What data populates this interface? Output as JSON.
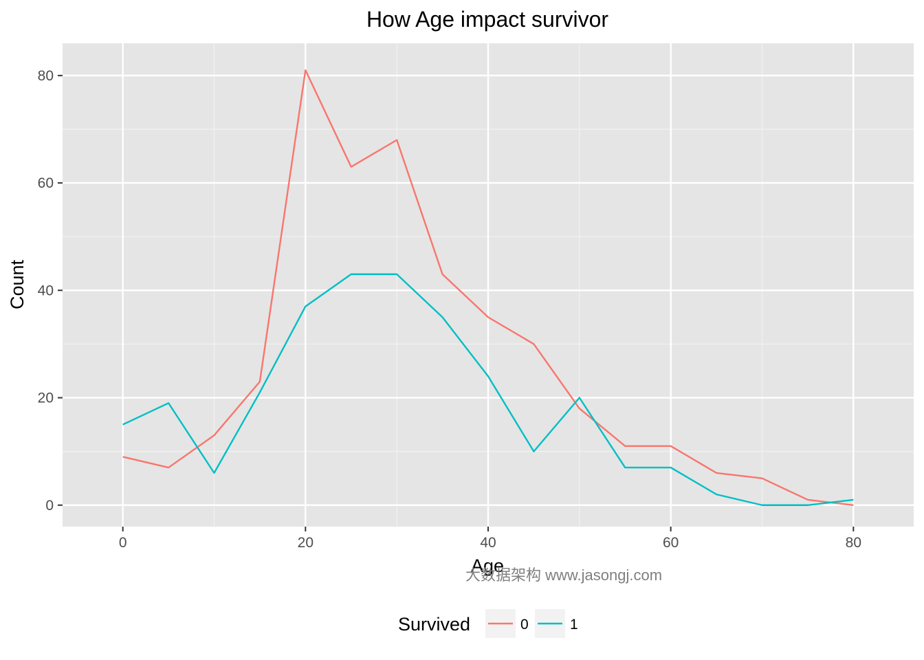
{
  "chart_data": {
    "type": "line",
    "title": "How Age impact survivor",
    "xlabel": "Age",
    "ylabel": "Count",
    "x": [
      0,
      5,
      10,
      15,
      20,
      25,
      30,
      35,
      40,
      45,
      50,
      55,
      60,
      65,
      70,
      75,
      80
    ],
    "series": [
      {
        "name": "0",
        "color": "#F8766D",
        "values": [
          9,
          7,
          13,
          23,
          81,
          63,
          68,
          43,
          35,
          30,
          18,
          11,
          11,
          6,
          5,
          1,
          0
        ]
      },
      {
        "name": "1",
        "color": "#00BFC4",
        "values": [
          15,
          19,
          6,
          21,
          37,
          43,
          43,
          35,
          24,
          10,
          20,
          7,
          7,
          2,
          0,
          0,
          1
        ]
      }
    ],
    "xlim": [
      -6.6,
      86.6
    ],
    "ylim": [
      -4,
      86
    ],
    "x_ticks": [
      "0",
      "20",
      "40",
      "60",
      "80"
    ],
    "y_ticks": [
      "0",
      "20",
      "40",
      "60",
      "80"
    ],
    "grid": true,
    "panel_background": "#E5E5E5",
    "legend_title": "Survived",
    "legend_position": "bottom"
  },
  "watermark": "大数据架构  www.jasongj.com"
}
